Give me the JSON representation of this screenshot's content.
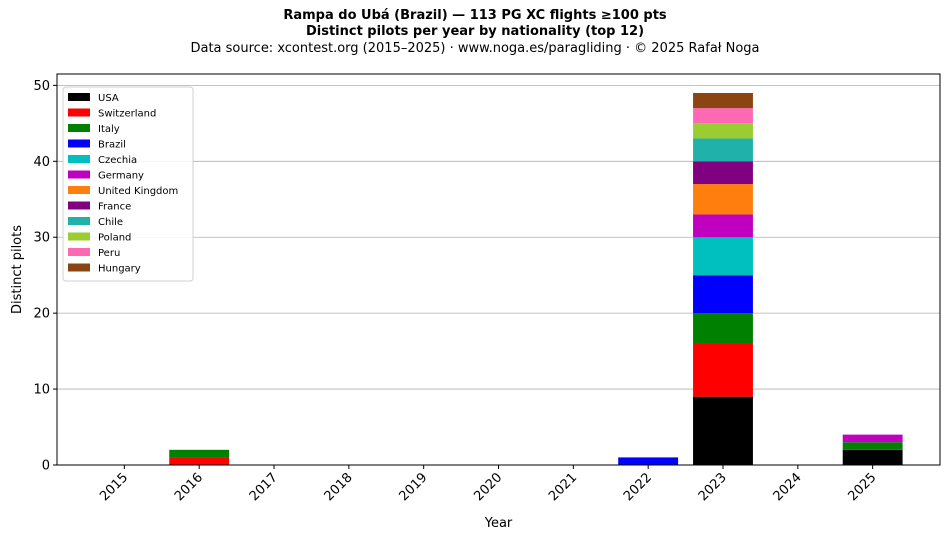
{
  "title_line1": "Rampa do Ubá (Brazil)  —  113 PG XC flights ≥100 pts",
  "title_line2": "Distinct pilots per year by nationality (top 12)",
  "subtitle": "Data source: xcontest.org (2015–2025)  ·  www.noga.es/paragliding  ·  © 2025 Rafał Noga",
  "chart_data": {
    "type": "bar",
    "stacked": true,
    "xlabel": "Year",
    "ylabel": "Distinct pilots",
    "ylim": [
      0,
      51.5
    ],
    "yticks": [
      0,
      10,
      20,
      30,
      40,
      50
    ],
    "grid": "y",
    "legend_position": "top-left",
    "categories": [
      "2015",
      "2016",
      "2017",
      "2018",
      "2019",
      "2020",
      "2021",
      "2022",
      "2023",
      "2024",
      "2025"
    ],
    "series": [
      {
        "name": "USA",
        "color": "#000000",
        "values": [
          0,
          0,
          0,
          0,
          0,
          0,
          0,
          0,
          9,
          0,
          2
        ]
      },
      {
        "name": "Switzerland",
        "color": "#ff0000",
        "values": [
          0,
          1,
          0,
          0,
          0,
          0,
          0,
          0,
          7,
          0,
          0
        ]
      },
      {
        "name": "Italy",
        "color": "#008000",
        "values": [
          0,
          1,
          0,
          0,
          0,
          0,
          0,
          0,
          4,
          0,
          1
        ]
      },
      {
        "name": "Brazil",
        "color": "#0000ff",
        "values": [
          0,
          0,
          0,
          0,
          0,
          0,
          0,
          1,
          5,
          0,
          0
        ]
      },
      {
        "name": "Czechia",
        "color": "#00bfbf",
        "values": [
          0,
          0,
          0,
          0,
          0,
          0,
          0,
          0,
          5,
          0,
          0
        ]
      },
      {
        "name": "Germany",
        "color": "#bf00bf",
        "values": [
          0,
          0,
          0,
          0,
          0,
          0,
          0,
          0,
          3,
          0,
          1
        ]
      },
      {
        "name": "United Kingdom",
        "color": "#ff7f0e",
        "values": [
          0,
          0,
          0,
          0,
          0,
          0,
          0,
          0,
          4,
          0,
          0
        ]
      },
      {
        "name": "France",
        "color": "#800080",
        "values": [
          0,
          0,
          0,
          0,
          0,
          0,
          0,
          0,
          3,
          0,
          0
        ]
      },
      {
        "name": "Chile",
        "color": "#20b2aa",
        "values": [
          0,
          0,
          0,
          0,
          0,
          0,
          0,
          0,
          3,
          0,
          0
        ]
      },
      {
        "name": "Poland",
        "color": "#9acd32",
        "values": [
          0,
          0,
          0,
          0,
          0,
          0,
          0,
          0,
          2,
          0,
          0
        ]
      },
      {
        "name": "Peru",
        "color": "#ff69b4",
        "values": [
          0,
          0,
          0,
          0,
          0,
          0,
          0,
          0,
          2,
          0,
          0
        ]
      },
      {
        "name": "Hungary",
        "color": "#8b4513",
        "values": [
          0,
          0,
          0,
          0,
          0,
          0,
          0,
          0,
          2,
          0,
          0
        ]
      }
    ]
  }
}
